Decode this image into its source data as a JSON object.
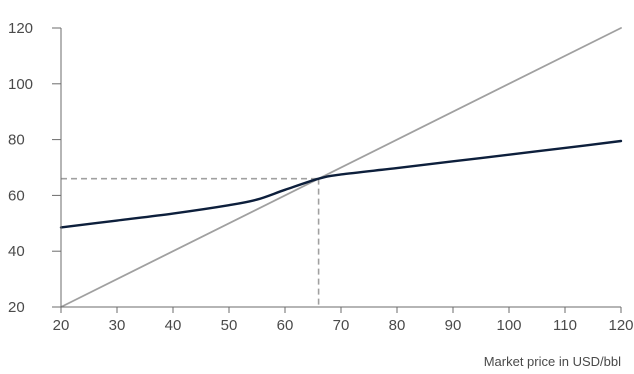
{
  "chart_data": {
    "type": "line",
    "title": "",
    "xlabel": "Market price in USD/bbl",
    "ylabel": "",
    "xlim": [
      20,
      120
    ],
    "ylim": [
      20,
      120
    ],
    "x_ticks": [
      20,
      30,
      40,
      50,
      60,
      70,
      80,
      90,
      100,
      110,
      120
    ],
    "y_ticks": [
      20,
      40,
      60,
      80,
      100,
      120
    ],
    "grid": false,
    "legend": "none",
    "series": [
      {
        "color": "#0d1f3c",
        "x": [
          20,
          30,
          40,
          50,
          55,
          60,
          66,
          70,
          80,
          90,
          100,
          110,
          120
        ],
        "y": [
          48.5,
          51,
          53.5,
          56.5,
          58.5,
          62,
          66,
          67.5,
          69.8,
          72.2,
          74.6,
          77,
          79.5
        ]
      },
      {
        "color": "#a0a0a0",
        "x": [
          20,
          120
        ],
        "y": [
          20,
          120
        ]
      }
    ],
    "reference_point": {
      "x": 66,
      "y": 66,
      "color": "#a0a0a0"
    }
  }
}
